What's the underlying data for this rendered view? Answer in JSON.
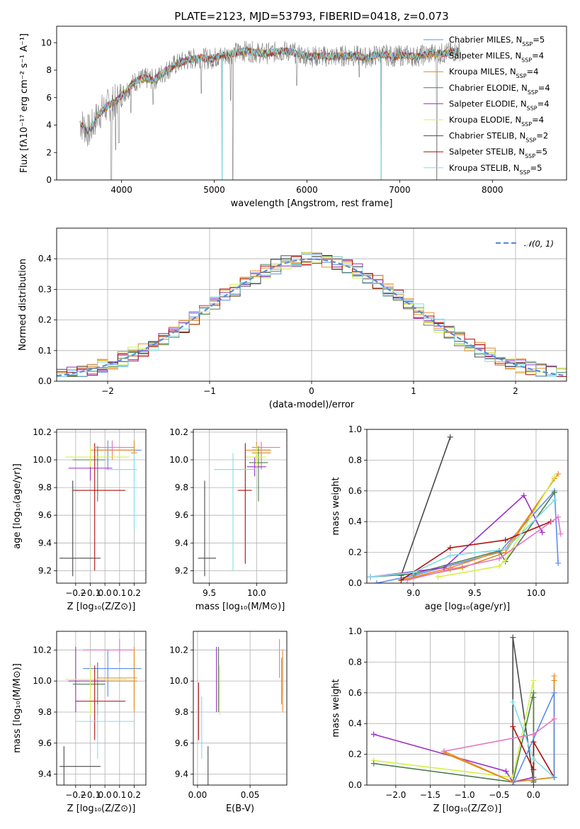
{
  "figure_title": "PLATE=2123, MJD=53793, FIBERID=0418, z=0.073",
  "colors": {
    "Chabrier MILES": "#5b8def",
    "Salpeter MILES": "#f28c28",
    "Kroupa MILES": "#d98c1f",
    "Chabrier ELODIE": "#4f7f4f",
    "Salpeter ELODIE": "#9b30c8",
    "Kroupa ELODIE": "#d4f04a",
    "Chabrier STELIB": "#4a4a4a",
    "Salpeter STELIB": "#b00f0f",
    "Kroupa STELIB": "#80deea",
    "data": "#808080",
    "gauss": "#5b8dd6",
    "extra_pink": "#e377c2"
  },
  "chart_data": [
    {
      "id": "spectrum",
      "type": "line",
      "title": "PLATE=2123, MJD=53793, FIBERID=0418, z=0.073",
      "xlabel": "wavelength [Angstrom, rest frame]",
      "ylabel": "Flux [fλ10⁻¹⁷ erg cm⁻² s⁻¹ A⁻¹]",
      "xlim": [
        3300,
        8800
      ],
      "ylim": [
        0,
        11.2
      ],
      "xticks": [
        4000,
        5000,
        6000,
        7000,
        8000
      ],
      "yticks": [
        0,
        2,
        4,
        6,
        8,
        10
      ],
      "legend": [
        "Chabrier MILES, N_SSP=5",
        "Salpeter MILES, N_SSP=4",
        "Kroupa MILES, N_SSP=4",
        "Chabrier ELODIE, N_SSP=4",
        "Salpeter ELODIE, N_SSP=4",
        "Kroupa ELODIE, N_SSP=4",
        "Chabrier STELIB, N_SSP=2",
        "Salpeter STELIB, N_SSP=5",
        "Kroupa STELIB, N_SSP=5"
      ],
      "legend_loc": "right",
      "continuum": [
        [
          3550,
          4.2
        ],
        [
          3650,
          3.5
        ],
        [
          3750,
          4.8
        ],
        [
          3850,
          5.4
        ],
        [
          3950,
          5.8
        ],
        [
          4050,
          6.5
        ],
        [
          4150,
          7.2
        ],
        [
          4250,
          7.4
        ],
        [
          4350,
          7.3
        ],
        [
          4450,
          7.8
        ],
        [
          4550,
          8.3
        ],
        [
          4650,
          8.6
        ],
        [
          4750,
          8.8
        ],
        [
          4850,
          8.9
        ],
        [
          4950,
          8.8
        ],
        [
          5050,
          9.0
        ],
        [
          5150,
          9.1
        ],
        [
          5250,
          9.3
        ],
        [
          5350,
          9.4
        ],
        [
          5450,
          9.3
        ],
        [
          5550,
          9.2
        ],
        [
          5650,
          9.3
        ],
        [
          5750,
          9.4
        ],
        [
          5850,
          9.3
        ],
        [
          5950,
          9.1
        ],
        [
          6050,
          9.0
        ],
        [
          6150,
          9.0
        ],
        [
          6250,
          9.0
        ],
        [
          6350,
          9.0
        ],
        [
          6450,
          9.1
        ],
        [
          6550,
          9.0
        ],
        [
          6650,
          8.9
        ],
        [
          6750,
          9.1
        ],
        [
          6850,
          9.1
        ],
        [
          6950,
          9.0
        ],
        [
          7050,
          9.1
        ],
        [
          7150,
          9.0
        ],
        [
          7250,
          9.1
        ],
        [
          7350,
          9.2
        ],
        [
          7450,
          9.2
        ],
        [
          7550,
          9.3
        ],
        [
          7650,
          9.4
        ]
      ],
      "dips": [
        [
          3890,
          0.0
        ],
        [
          3935,
          2.2
        ],
        [
          3970,
          2.7
        ],
        [
          4100,
          4.9
        ],
        [
          4340,
          5.5
        ],
        [
          4860,
          6.3
        ],
        [
          5085,
          0.0
        ],
        [
          5175,
          5.8
        ],
        [
          5200,
          0.0
        ],
        [
          5890,
          6.9
        ],
        [
          6563,
          7.5
        ],
        [
          6800,
          0.0
        ],
        [
          7400,
          0.0
        ]
      ]
    },
    {
      "id": "residual_hist",
      "type": "line",
      "xlabel": "(data-model)/error",
      "ylabel": "Normed distribution",
      "xlim": [
        -2.5,
        2.5
      ],
      "ylim": [
        0,
        0.5
      ],
      "xticks": [
        -2,
        -1,
        0,
        1,
        2
      ],
      "yticks": [
        0.0,
        0.1,
        0.2,
        0.3,
        0.4
      ],
      "grid": true,
      "legend": [
        "𝒩(0, 1)"
      ],
      "legend_loc": "upper right",
      "gaussian": {
        "mean": 0,
        "sigma": 1
      }
    },
    {
      "id": "age_vs_Z",
      "type": "scatter",
      "xlabel": "Z [log₁₀(Z/Z⊙)]",
      "ylabel": "age  [log₁₀(age/yr)]",
      "xlim": [
        -0.33,
        0.28
      ],
      "ylim": [
        9.11,
        10.22
      ],
      "xticks": [
        -0.2,
        -0.1,
        0.0,
        0.1,
        0.2
      ],
      "yticks": [
        9.2,
        9.4,
        9.6,
        9.8,
        10.0,
        10.2
      ],
      "grid": true,
      "points": [
        {
          "c": "Chabrier MILES",
          "x": 0.02,
          "y": 10.07,
          "xl": -0.05,
          "xh": 0.25,
          "yl": 9.93,
          "yh": 10.14
        },
        {
          "c": "Salpeter MILES",
          "x": 0.05,
          "y": 10.07,
          "xl": -0.1,
          "xh": 0.2,
          "yl": 10.0,
          "yh": 10.14
        },
        {
          "c": "Kroupa MILES",
          "x": 0.2,
          "y": 10.05,
          "xl": 0.18,
          "xh": 0.22,
          "yl": 9.92,
          "yh": 10.14
        },
        {
          "c": "Chabrier ELODIE",
          "x": -0.05,
          "y": 10.0,
          "xl": -0.22,
          "xh": 0.0,
          "yl": 9.7,
          "yh": 10.1
        },
        {
          "c": "Salpeter ELODIE",
          "x": -0.1,
          "y": 9.94,
          "xl": -0.25,
          "xh": 0.05,
          "yl": 9.85,
          "yh": 10.02
        },
        {
          "c": "Kroupa ELODIE",
          "x": -0.1,
          "y": 10.02,
          "xl": -0.27,
          "xh": 0.17,
          "yl": 9.95,
          "yh": 10.1
        },
        {
          "c": "Chabrier STELIB",
          "x": -0.22,
          "y": 9.29,
          "xl": -0.31,
          "xh": -0.03,
          "yl": 9.16,
          "yh": 9.85
        },
        {
          "c": "Salpeter STELIB",
          "x": -0.07,
          "y": 9.78,
          "xl": -0.22,
          "xh": 0.14,
          "yl": 9.2,
          "yh": 10.12
        },
        {
          "c": "Kroupa STELIB",
          "x": 0.2,
          "y": 9.93,
          "xl": 0.0,
          "xh": 0.22,
          "yl": 9.5,
          "yh": 10.05
        },
        {
          "c": "extra_pink",
          "x": 0.05,
          "y": 10.09,
          "xl": -0.07,
          "xh": 0.2,
          "yl": 10.05,
          "yh": 10.13
        }
      ]
    },
    {
      "id": "age_vs_mass",
      "type": "scatter",
      "xlabel": "mass [log₁₀(M/M⊙)]",
      "ylabel": "",
      "xlim": [
        9.33,
        10.32
      ],
      "ylim": [
        9.11,
        10.22
      ],
      "xticks": [
        9.5,
        10.0
      ],
      "yticks": [
        9.2,
        9.4,
        9.6,
        9.8,
        10.0,
        10.2
      ],
      "grid": true,
      "points": [
        {
          "c": "Chabrier MILES",
          "x": 10.05,
          "y": 10.07,
          "xl": 9.95,
          "xh": 10.15,
          "yl": 9.93,
          "yh": 10.13
        },
        {
          "c": "Salpeter MILES",
          "x": 10.0,
          "y": 10.07,
          "xl": 9.88,
          "xh": 10.15,
          "yl": 9.99,
          "yh": 10.13
        },
        {
          "c": "Kroupa MILES",
          "x": 10.05,
          "y": 10.05,
          "xl": 9.95,
          "xh": 10.15,
          "yl": 9.95,
          "yh": 10.13
        },
        {
          "c": "Chabrier ELODIE",
          "x": 10.02,
          "y": 9.98,
          "xl": 9.92,
          "xh": 10.12,
          "yl": 9.7,
          "yh": 10.1
        },
        {
          "c": "Salpeter ELODIE",
          "x": 9.98,
          "y": 9.95,
          "xl": 9.9,
          "xh": 10.1,
          "yl": 9.88,
          "yh": 10.02
        },
        {
          "c": "Kroupa ELODIE",
          "x": 10.0,
          "y": 10.02,
          "xl": 9.88,
          "xh": 10.1,
          "yl": 9.95,
          "yh": 10.1
        },
        {
          "c": "Chabrier STELIB",
          "x": 9.45,
          "y": 9.29,
          "xl": 9.38,
          "xh": 9.57,
          "yl": 9.16,
          "yh": 9.85
        },
        {
          "c": "Salpeter STELIB",
          "x": 9.88,
          "y": 9.78,
          "xl": 9.8,
          "xh": 9.95,
          "yl": 9.25,
          "yh": 10.12
        },
        {
          "c": "Kroupa STELIB",
          "x": 9.75,
          "y": 9.93,
          "xl": 9.55,
          "xh": 9.98,
          "yl": 9.2,
          "yh": 10.05
        },
        {
          "c": "extra_pink",
          "x": 10.05,
          "y": 10.09,
          "xl": 9.95,
          "xh": 10.25,
          "yl": 10.05,
          "yh": 10.13
        }
      ]
    },
    {
      "id": "massweight_vs_age",
      "type": "line",
      "xlabel": "age  [log₁₀(age/yr)]",
      "ylabel": "mass weight",
      "xlim": [
        8.62,
        10.26
      ],
      "ylim": [
        0,
        1.0
      ],
      "xticks": [
        9.0,
        9.5,
        10.0
      ],
      "yticks": [
        0.0,
        0.2,
        0.4,
        0.6,
        0.8,
        1.0
      ],
      "grid": true,
      "series": [
        {
          "c": "Chabrier STELIB",
          "x": [
            8.9,
            9.3
          ],
          "y": [
            0.05,
            0.95
          ]
        },
        {
          "c": "Chabrier MILES",
          "x": [
            8.7,
            9.0,
            9.7,
            10.15,
            10.18
          ],
          "y": [
            0.0,
            0.05,
            0.2,
            0.6,
            0.13
          ]
        },
        {
          "c": "Salpeter MILES",
          "x": [
            8.9,
            9.3,
            9.75,
            10.18
          ],
          "y": [
            0.02,
            0.1,
            0.22,
            0.71
          ]
        },
        {
          "c": "Kroupa MILES",
          "x": [
            8.9,
            9.4,
            9.75,
            10.15
          ],
          "y": [
            0.02,
            0.1,
            0.2,
            0.68
          ]
        },
        {
          "c": "Chabrier ELODIE",
          "x": [
            8.65,
            9.0,
            9.7,
            9.75,
            10.15
          ],
          "y": [
            0.04,
            0.06,
            0.21,
            0.14,
            0.59
          ]
        },
        {
          "c": "Salpeter ELODIE",
          "x": [
            8.65,
            9.25,
            9.9,
            10.05
          ],
          "y": [
            0.04,
            0.1,
            0.57,
            0.33
          ]
        },
        {
          "c": "Kroupa ELODIE",
          "x": [
            9.2,
            9.7,
            9.75,
            10.15
          ],
          "y": [
            0.04,
            0.11,
            0.15,
            0.69
          ]
        },
        {
          "c": "Salpeter STELIB",
          "x": [
            8.9,
            9.3,
            9.75,
            10.12
          ],
          "y": [
            0.02,
            0.23,
            0.28,
            0.4
          ]
        },
        {
          "c": "Kroupa STELIB",
          "x": [
            8.65,
            9.0,
            9.3,
            9.75,
            10.15
          ],
          "y": [
            0.04,
            0.07,
            0.18,
            0.22,
            0.54
          ]
        },
        {
          "c": "extra_pink",
          "x": [
            8.95,
            9.3,
            9.7,
            10.18,
            10.2
          ],
          "y": [
            0.02,
            0.09,
            0.16,
            0.43,
            0.32
          ]
        }
      ]
    },
    {
      "id": "mass_vs_Z",
      "type": "scatter",
      "xlabel": "Z [log₁₀(Z/Z⊙)]",
      "ylabel": "mass [log₁₀(M/M⊙)]",
      "xlim": [
        -0.33,
        0.28
      ],
      "ylim": [
        9.33,
        10.32
      ],
      "xticks": [
        -0.2,
        -0.1,
        0.0,
        0.1,
        0.2
      ],
      "yticks": [
        9.4,
        9.6,
        9.8,
        10.0,
        10.2
      ],
      "grid": true,
      "points": [
        {
          "c": "Chabrier MILES",
          "x": 0.02,
          "y": 10.08,
          "xl": -0.15,
          "xh": 0.25,
          "yl": 9.9,
          "yh": 10.2
        },
        {
          "c": "Salpeter MILES",
          "x": 0.2,
          "y": 10.02,
          "xl": -0.05,
          "xh": 0.22,
          "yl": 9.8,
          "yh": 10.22
        },
        {
          "c": "Kroupa MILES",
          "x": 0.2,
          "y": 10.0,
          "xl": -0.1,
          "xh": 0.22,
          "yl": 9.82,
          "yh": 10.2
        },
        {
          "c": "Chabrier ELODIE",
          "x": -0.05,
          "y": 9.98,
          "xl": -0.22,
          "xh": 0.0,
          "yl": 9.78,
          "yh": 10.12
        },
        {
          "c": "Salpeter ELODIE",
          "x": -0.2,
          "y": 10.0,
          "xl": -0.25,
          "xh": 0.0,
          "yl": 9.8,
          "yh": 10.22
        },
        {
          "c": "Kroupa ELODIE",
          "x": -0.1,
          "y": 10.01,
          "xl": -0.27,
          "xh": 0.15,
          "yl": 9.78,
          "yh": 10.1
        },
        {
          "c": "Chabrier STELIB",
          "x": -0.28,
          "y": 9.45,
          "xl": -0.31,
          "xh": -0.03,
          "yl": 9.33,
          "yh": 9.58
        },
        {
          "c": "Salpeter STELIB",
          "x": -0.07,
          "y": 9.87,
          "xl": -0.2,
          "xh": 0.14,
          "yl": 9.62,
          "yh": 10.1
        },
        {
          "c": "Kroupa STELIB",
          "x": -0.05,
          "y": 9.74,
          "xl": -0.2,
          "xh": 0.2,
          "yl": 9.5,
          "yh": 9.85
        },
        {
          "c": "extra_pink",
          "x": 0.1,
          "y": 10.2,
          "xl": -0.15,
          "xh": 0.2,
          "yl": 10.12,
          "yh": 10.27
        }
      ]
    },
    {
      "id": "mass_vs_ebv",
      "type": "scatter",
      "xlabel": "E(B-V)",
      "ylabel": "",
      "xlim": [
        -0.004,
        0.085
      ],
      "ylim": [
        9.33,
        10.32
      ],
      "xticks": [
        0.0,
        0.05
      ],
      "yticks": [
        9.4,
        9.6,
        9.8,
        10.0,
        10.2
      ],
      "grid": true,
      "points": [
        {
          "c": "Chabrier MILES",
          "x": 0.081,
          "y": 10.08,
          "yl": 9.92,
          "yh": 10.2
        },
        {
          "c": "Salpeter MILES",
          "x": 0.081,
          "y": 10.0,
          "yl": 9.8,
          "yh": 10.2
        },
        {
          "c": "Kroupa MILES",
          "x": 0.08,
          "y": 10.02,
          "yl": 9.85,
          "yh": 10.15
        },
        {
          "c": "Chabrier ELODIE",
          "x": 0.02,
          "y": 10.0,
          "yl": 9.8,
          "yh": 10.22
        },
        {
          "c": "Salpeter ELODIE",
          "x": 0.018,
          "y": 10.05,
          "yl": 9.8,
          "yh": 10.22
        },
        {
          "c": "Kroupa ELODIE",
          "x": 0.021,
          "y": 9.98,
          "yl": 9.78,
          "yh": 10.1
        },
        {
          "c": "Chabrier STELIB",
          "x": 0.01,
          "y": 9.45,
          "yl": 9.33,
          "yh": 9.58
        },
        {
          "c": "Salpeter STELIB",
          "x": 0.001,
          "y": 9.8,
          "yl": 9.62,
          "yh": 9.99
        },
        {
          "c": "Kroupa STELIB",
          "x": 0.004,
          "y": 9.7,
          "yl": 9.5,
          "yh": 9.9
        },
        {
          "c": "extra_pink",
          "x": 0.078,
          "y": 10.15,
          "yl": 10.02,
          "yh": 10.27
        }
      ]
    },
    {
      "id": "massweight_vs_Z",
      "type": "line",
      "xlabel": "Z [log₁₀(Z/Z⊙)]",
      "ylabel": "mass weight",
      "xlim": [
        -2.42,
        0.5
      ],
      "ylim": [
        0,
        1.0
      ],
      "xticks": [
        -2.0,
        -1.5,
        -1.0,
        -0.5,
        0.0
      ],
      "yticks": [
        0.0,
        0.2,
        0.4,
        0.6,
        0.8,
        1.0
      ],
      "grid": true,
      "series": [
        {
          "c": "Chabrier STELIB",
          "x": [
            -0.3,
            -0.3,
            0.0
          ],
          "y": [
            0.05,
            0.96,
            0.02
          ]
        },
        {
          "c": "Salpeter ELODIE",
          "x": [
            -2.32,
            -0.4,
            -0.3,
            0.0,
            0.0
          ],
          "y": [
            0.33,
            0.09,
            0.02,
            0.05,
            0.57
          ]
        },
        {
          "c": "Kroupa ELODIE",
          "x": [
            -2.32,
            -0.3,
            0.0,
            0.0
          ],
          "y": [
            0.16,
            0.05,
            0.68,
            0.14
          ]
        },
        {
          "c": "Chabrier ELODIE",
          "x": [
            -2.32,
            -0.3,
            0.0,
            0.0
          ],
          "y": [
            0.14,
            0.02,
            0.6,
            0.03
          ]
        },
        {
          "c": "Salpeter MILES",
          "x": [
            -1.3,
            -0.3,
            0.3,
            0.3
          ],
          "y": [
            0.22,
            0.02,
            0.05,
            0.71
          ]
        },
        {
          "c": "Kroupa MILES",
          "x": [
            -1.3,
            -0.3,
            0.3,
            0.3
          ],
          "y": [
            0.21,
            0.02,
            0.05,
            0.68
          ]
        },
        {
          "c": "Salpeter STELIB",
          "x": [
            -0.3,
            0.0,
            0.0,
            0.3
          ],
          "y": [
            0.38,
            0.1,
            0.28,
            0.05
          ]
        },
        {
          "c": "Kroupa STELIB",
          "x": [
            -0.3,
            0.0,
            0.3
          ],
          "y": [
            0.54,
            0.17,
            0.05
          ]
        },
        {
          "c": "Chabrier MILES",
          "x": [
            -0.3,
            0.3,
            0.3
          ],
          "y": [
            0.0,
            0.6,
            0.05
          ]
        },
        {
          "c": "extra_pink",
          "x": [
            -1.3,
            0.0,
            0.3
          ],
          "y": [
            0.22,
            0.33,
            0.43
          ]
        }
      ]
    }
  ]
}
